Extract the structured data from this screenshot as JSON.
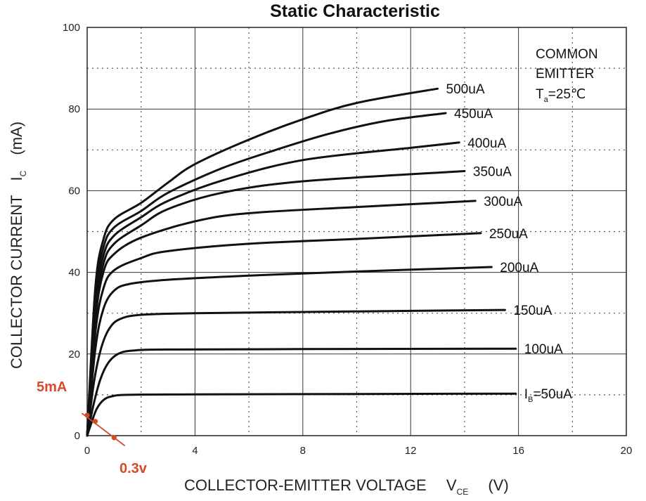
{
  "chart_data": {
    "type": "line",
    "title": "Static Characteristic",
    "xlabel": "COLLECTOR-EMITTER VOLTAGE",
    "xlabel_symbol": "V",
    "xlabel_subscript": "CE",
    "xlabel_unit": "(V)",
    "ylabel": "COLLECTOR CURRENT",
    "ylabel_symbol": "I",
    "ylabel_subscript": "C",
    "ylabel_unit": "(mA)",
    "xlim": [
      0,
      20
    ],
    "ylim": [
      0,
      100
    ],
    "x_ticks": [
      "0",
      "4",
      "8",
      "12",
      "16",
      "20"
    ],
    "y_ticks": [
      "0",
      "20",
      "40",
      "60",
      "80",
      "100"
    ],
    "grid": "major solid, minor dotted",
    "conditions": {
      "line1": "COMMON",
      "line2": "EMITTER",
      "temp_prefix": "T",
      "temp_sub": "a",
      "temp_value": "=25℃"
    },
    "series": [
      {
        "label": "I",
        "label_sub": "B",
        "label_rest": "=50uA",
        "end_x": 15.9,
        "points": [
          [
            0,
            0
          ],
          [
            0.15,
            3
          ],
          [
            0.35,
            6.5
          ],
          [
            0.6,
            8.7
          ],
          [
            0.9,
            9.6
          ],
          [
            1.5,
            10
          ],
          [
            4,
            10.1
          ],
          [
            10,
            10.2
          ],
          [
            15.9,
            10.3
          ]
        ]
      },
      {
        "label": "100uA",
        "end_x": 15.9,
        "points": [
          [
            0,
            0
          ],
          [
            0.25,
            8
          ],
          [
            0.5,
            14
          ],
          [
            0.8,
            18
          ],
          [
            1.2,
            20.2
          ],
          [
            1.8,
            20.9
          ],
          [
            3,
            21.1
          ],
          [
            8,
            21.2
          ],
          [
            15.9,
            21.3
          ]
        ]
      },
      {
        "label": "150uA",
        "end_x": 15.5,
        "points": [
          [
            0,
            0
          ],
          [
            0.25,
            13
          ],
          [
            0.5,
            21
          ],
          [
            0.8,
            26
          ],
          [
            1.2,
            28.5
          ],
          [
            2,
            29.6
          ],
          [
            4,
            30
          ],
          [
            8,
            30.3
          ],
          [
            15.5,
            30.8
          ]
        ]
      },
      {
        "label": "200uA",
        "end_x": 15.0,
        "points": [
          [
            0,
            0
          ],
          [
            0.3,
            21
          ],
          [
            0.6,
            31
          ],
          [
            1.0,
            35.5
          ],
          [
            1.6,
            37.2
          ],
          [
            3,
            38.2
          ],
          [
            6,
            39.2
          ],
          [
            10,
            40.2
          ],
          [
            15,
            41.3
          ]
        ]
      },
      {
        "label": "250uA",
        "end_x": 14.6,
        "points": [
          [
            0,
            0
          ],
          [
            0.3,
            25
          ],
          [
            0.6,
            36
          ],
          [
            1,
            40.5
          ],
          [
            2,
            43.5
          ],
          [
            3,
            45.2
          ],
          [
            6,
            47
          ],
          [
            10,
            48.2
          ],
          [
            14.6,
            49.6
          ]
        ]
      },
      {
        "label": "300uA",
        "end_x": 14.4,
        "points": [
          [
            0,
            0
          ],
          [
            0.3,
            28
          ],
          [
            0.6,
            40
          ],
          [
            1,
            44.5
          ],
          [
            2,
            48.5
          ],
          [
            4,
            52.5
          ],
          [
            6,
            54.5
          ],
          [
            10,
            56
          ],
          [
            14.4,
            57.5
          ]
        ]
      },
      {
        "label": "350uA",
        "end_x": 14.0,
        "points": [
          [
            0,
            0
          ],
          [
            0.3,
            30
          ],
          [
            0.6,
            42
          ],
          [
            1,
            47
          ],
          [
            2,
            51.5
          ],
          [
            3,
            55.5
          ],
          [
            5,
            59.5
          ],
          [
            8,
            62.3
          ],
          [
            14,
            64.8
          ]
        ]
      },
      {
        "label": "400uA",
        "end_x": 13.8,
        "points": [
          [
            0,
            0
          ],
          [
            0.3,
            32
          ],
          [
            0.6,
            44
          ],
          [
            1,
            49
          ],
          [
            2,
            53.5
          ],
          [
            3,
            57.5
          ],
          [
            5,
            62.5
          ],
          [
            8,
            67.5
          ],
          [
            12,
            70.5
          ],
          [
            13.8,
            71.8
          ]
        ]
      },
      {
        "label": "450uA",
        "end_x": 13.3,
        "points": [
          [
            0,
            0
          ],
          [
            0.3,
            34
          ],
          [
            0.6,
            46
          ],
          [
            1,
            51
          ],
          [
            2,
            55
          ],
          [
            3,
            59.5
          ],
          [
            5,
            65.5
          ],
          [
            7,
            70
          ],
          [
            9,
            74
          ],
          [
            11,
            77
          ],
          [
            13.3,
            79
          ]
        ]
      },
      {
        "label": "500uA",
        "end_x": 13.0,
        "points": [
          [
            0,
            0
          ],
          [
            0.3,
            36
          ],
          [
            0.6,
            48
          ],
          [
            1,
            53
          ],
          [
            2,
            57
          ],
          [
            3,
            62
          ],
          [
            4,
            66.5
          ],
          [
            6,
            72.5
          ],
          [
            8,
            77.5
          ],
          [
            10,
            81.5
          ],
          [
            13,
            85
          ]
        ]
      }
    ],
    "annotations": {
      "current_label": "5mA",
      "voltage_label": "0.3v",
      "color": "#d64a2a",
      "line_points": [
        [
          -0.2,
          5.5
        ],
        [
          1.4,
          -2.5
        ]
      ],
      "markers": [
        [
          0,
          5
        ],
        [
          0.3,
          3.5
        ],
        [
          1.0,
          -0.5
        ]
      ]
    }
  }
}
